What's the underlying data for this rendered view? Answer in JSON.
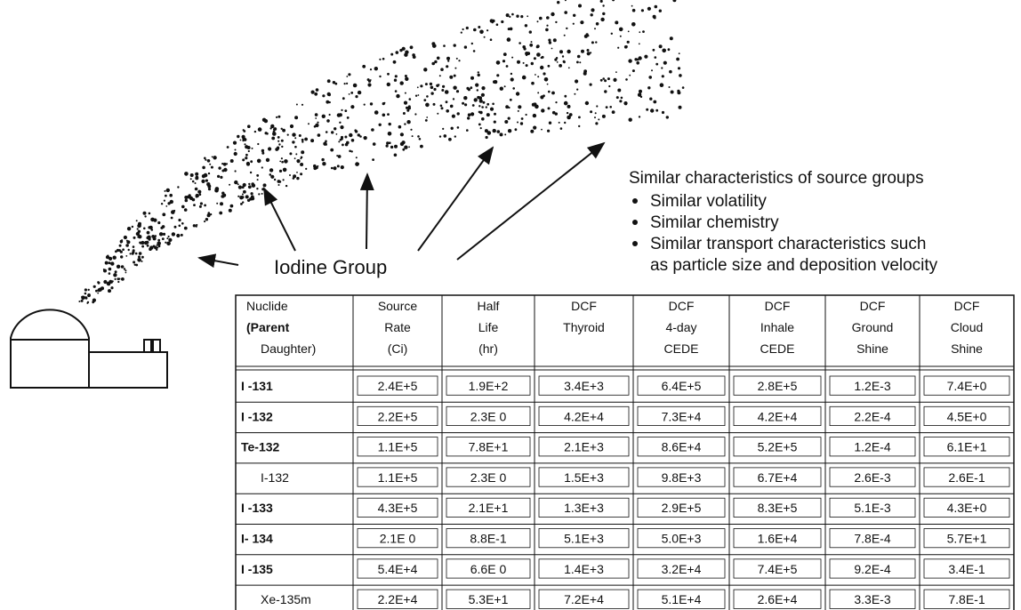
{
  "annotation": {
    "title": "Similar characteristics of source groups",
    "bullets": [
      [
        "Similar volatility"
      ],
      [
        "Similar chemistry"
      ],
      [
        "Similar transport characteristics such",
        "as particle size and deposition velocity"
      ]
    ]
  },
  "label": "Iodine Group",
  "table": {
    "header": [
      [
        "Nuclide",
        "(Parent",
        "Daughter)"
      ],
      [
        "Source",
        "Rate",
        "(Ci)"
      ],
      [
        "Half",
        "Life",
        "(hr)"
      ],
      [
        "DCF",
        "Thyroid"
      ],
      [
        "DCF",
        "4-day",
        "CEDE"
      ],
      [
        "DCF",
        "Inhale",
        "CEDE"
      ],
      [
        "DCF",
        "Ground",
        "Shine"
      ],
      [
        "DCF",
        "Cloud",
        "Shine"
      ]
    ],
    "rows": [
      [
        "I -131",
        "2.4E+5",
        "1.9E+2",
        "3.4E+3",
        "6.4E+5",
        "2.8E+5",
        "1.2E-3",
        "7.4E+0"
      ],
      [
        "I -132",
        "2.2E+5",
        "2.3E 0",
        "4.2E+4",
        "7.3E+4",
        "4.2E+4",
        "2.2E-4",
        "4.5E+0"
      ],
      [
        "Te-132",
        "1.1E+5",
        "7.8E+1",
        "2.1E+3",
        "8.6E+4",
        "5.2E+5",
        "1.2E-4",
        "6.1E+1"
      ],
      [
        "I-132",
        "1.1E+5",
        "2.3E 0",
        "1.5E+3",
        "9.8E+3",
        "6.7E+4",
        "2.6E-3",
        "2.6E-1"
      ],
      [
        "I -133",
        "4.3E+5",
        "2.1E+1",
        "1.3E+3",
        "2.9E+5",
        "8.3E+5",
        "5.1E-3",
        "4.3E+0"
      ],
      [
        "I- 134",
        "2.1E 0",
        "8.8E-1",
        "5.1E+3",
        "5.0E+3",
        "1.6E+4",
        "7.8E-4",
        "5.7E+1"
      ],
      [
        "I -135",
        "5.4E+4",
        "6.6E 0",
        "1.4E+3",
        "3.2E+4",
        "7.4E+5",
        "9.2E-4",
        "3.4E-1"
      ],
      [
        "Xe-135m",
        "2.2E+4",
        "5.3E+1",
        "7.2E+4",
        "5.1E+4",
        "2.6E+4",
        "3.3E-3",
        "7.8E-1"
      ]
    ]
  }
}
